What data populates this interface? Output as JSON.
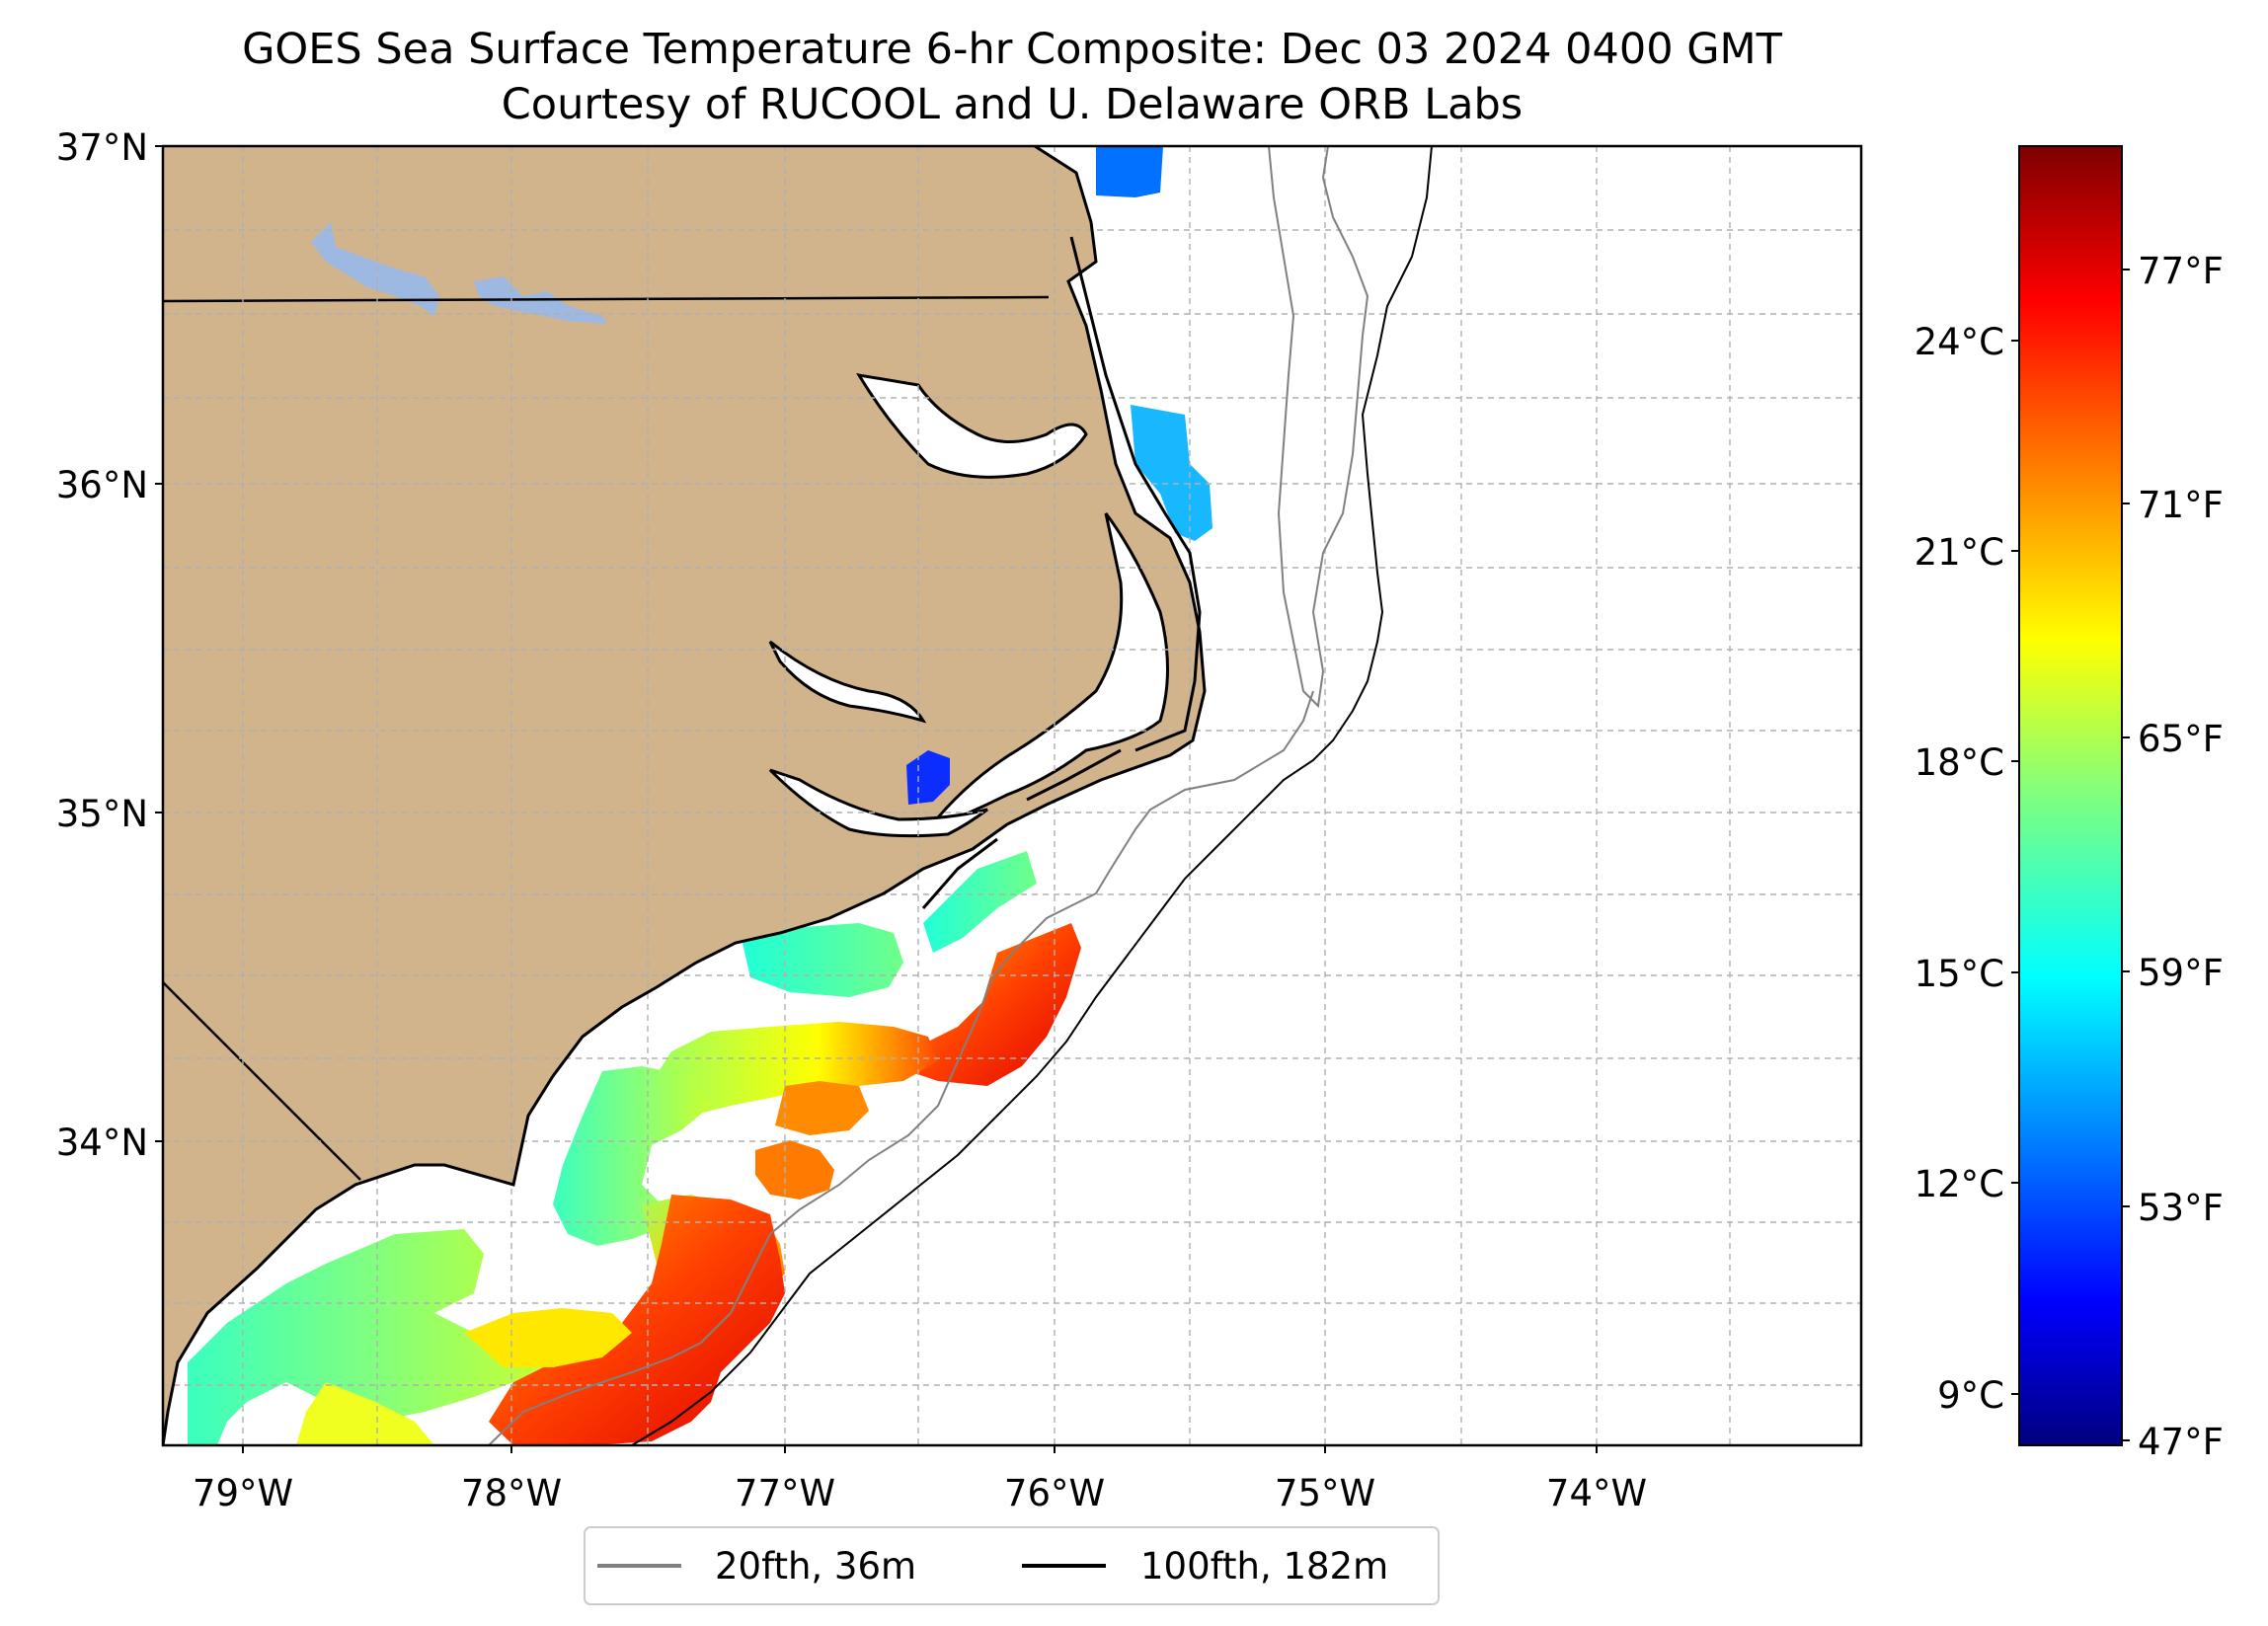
{
  "title": {
    "line1": "GOES Sea Surface Temperature 6-hr Composite: Dec 03 2024 0400 GMT",
    "line2": "Courtesy of RUCOOL and U. Delaware ORB Labs"
  },
  "map": {
    "lon_range": [
      -79.3,
      -73.05
    ],
    "lat_range": [
      33.1,
      37.0
    ],
    "lat_ticks": [
      {
        "value": 37,
        "label": "37°N"
      },
      {
        "value": 36,
        "label": "36°N"
      },
      {
        "value": 35,
        "label": "35°N"
      },
      {
        "value": 34,
        "label": "34°N"
      }
    ],
    "lon_ticks": [
      {
        "value": -79,
        "label": "79°W"
      },
      {
        "value": -78,
        "label": "78°W"
      },
      {
        "value": -77,
        "label": "77°W"
      },
      {
        "value": -76,
        "label": "76°W"
      },
      {
        "value": -75,
        "label": "75°W"
      },
      {
        "value": -74,
        "label": "74°W"
      }
    ],
    "colors": {
      "land": "#d2b48c",
      "lake": "#9db9e2",
      "isobath_20": "#808080",
      "isobath_100": "#000000"
    }
  },
  "colorbar": {
    "vmin_c": 8.4,
    "vmax_c": 26.8,
    "celsius_ticks": [
      {
        "value": 24,
        "label": "24°C"
      },
      {
        "value": 21,
        "label": "21°C"
      },
      {
        "value": 18,
        "label": "18°C"
      },
      {
        "value": 15,
        "label": "15°C"
      },
      {
        "value": 12,
        "label": "12°C"
      },
      {
        "value": 9,
        "label": "9°C"
      }
    ],
    "fahrenheit_ticks": [
      {
        "value": 77,
        "label": "77°F"
      },
      {
        "value": 71,
        "label": "71°F"
      },
      {
        "value": 65,
        "label": "65°F"
      },
      {
        "value": 59,
        "label": "59°F"
      },
      {
        "value": 53,
        "label": "53°F"
      },
      {
        "value": 47,
        "label": "47°F"
      }
    ],
    "colormap": "jet"
  },
  "legend": {
    "items": [
      {
        "label": "20fth, 36m",
        "color": "#808080"
      },
      {
        "label": "100fth, 182m",
        "color": "#000000"
      }
    ]
  }
}
